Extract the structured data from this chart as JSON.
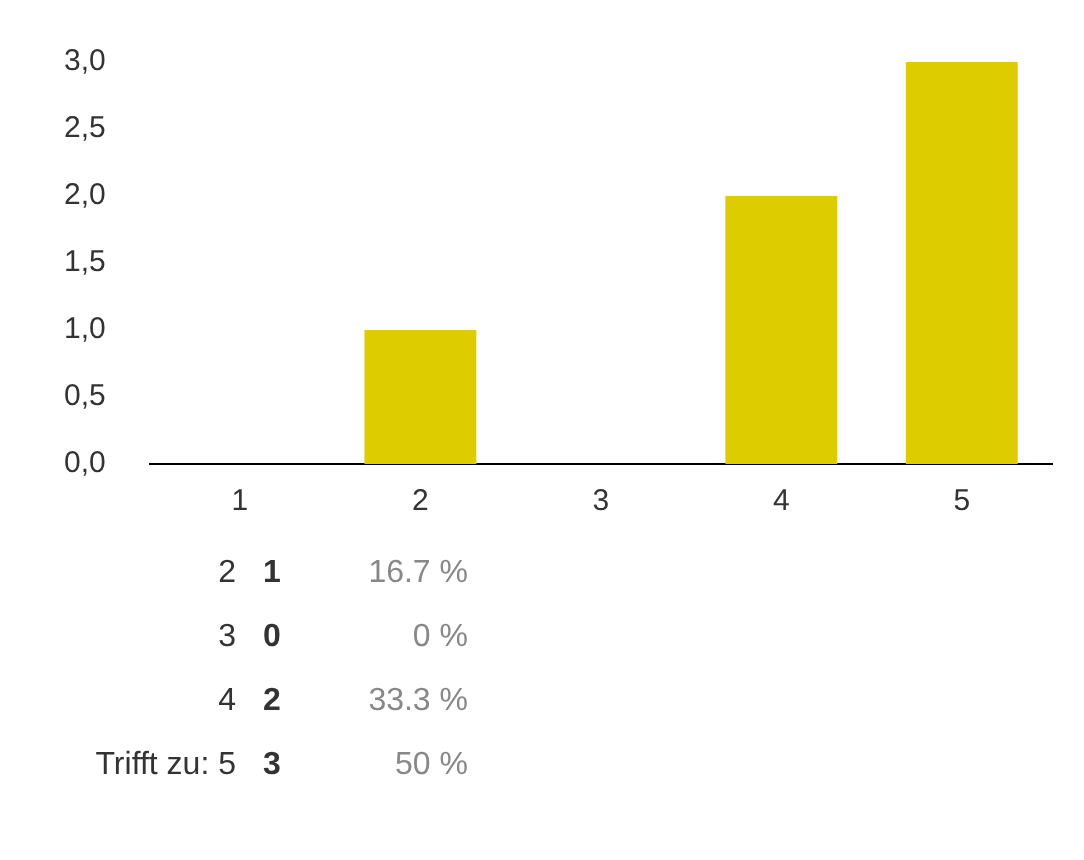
{
  "chart_data": {
    "type": "bar",
    "categories": [
      "1",
      "2",
      "3",
      "4",
      "5"
    ],
    "values": [
      0,
      1,
      0,
      2,
      3
    ],
    "color": "#ddcc00",
    "ylim": [
      0,
      3
    ],
    "yticks": [
      {
        "value": 0,
        "label": "0,0"
      },
      {
        "value": 0.5,
        "label": "0,5"
      },
      {
        "value": 1,
        "label": "1,0"
      },
      {
        "value": 1.5,
        "label": "1,5"
      },
      {
        "value": 2,
        "label": "2,0"
      },
      {
        "value": 2.5,
        "label": "2,5"
      },
      {
        "value": 3,
        "label": "3,0"
      }
    ],
    "grid": false,
    "legend": false,
    "annotations": [
      "2",
      "1",
      "16.7 %",
      "3",
      "0",
      "0 %",
      "4",
      "2",
      "33.3 %",
      "Trifft zu: 5",
      "3",
      "50 %"
    ]
  }
}
